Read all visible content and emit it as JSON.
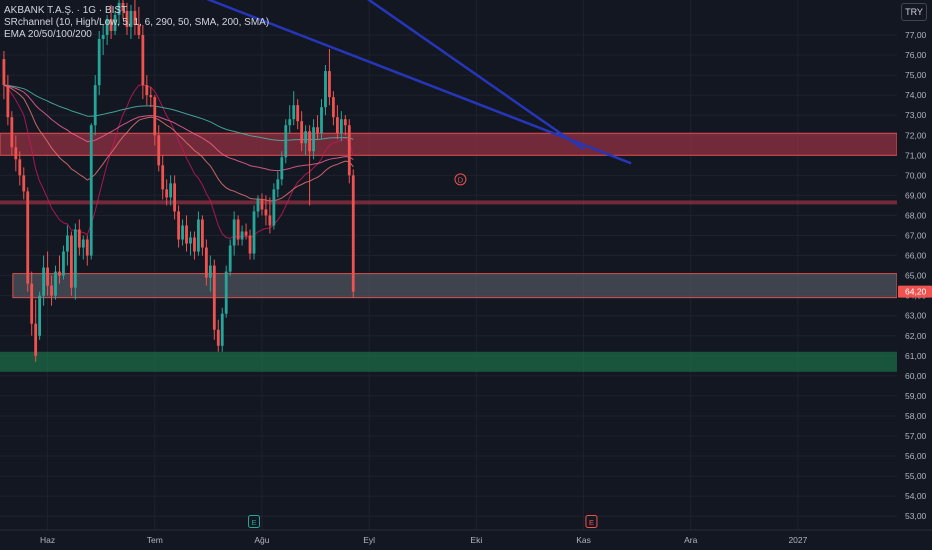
{
  "header": {
    "symbol_line": "AKBANK T.A.Ş. · 1G · BIST",
    "indicator1": "SRchannel (10, High/Low, 5, 1, 6, 290, 50, SMA, 200, SMA)",
    "indicator2": "EMA 20/50/100/200"
  },
  "currency_button": "TRY",
  "chart_data": {
    "type": "candlestick",
    "currency": "TRY",
    "ylim": [
      52.5,
      78.2
    ],
    "y_ticks": [
      "53,00",
      "54,00",
      "55,00",
      "56,00",
      "57,00",
      "58,00",
      "59,00",
      "60,00",
      "61,00",
      "62,00",
      "63,00",
      "64,00",
      "65,00",
      "66,00",
      "67,00",
      "68,00",
      "69,00",
      "70,00",
      "71,00",
      "72,00",
      "73,00",
      "74,00",
      "75,00",
      "76,00",
      "77,00"
    ],
    "y_tick_values": [
      53,
      54,
      55,
      56,
      57,
      58,
      59,
      60,
      61,
      62,
      63,
      64,
      65,
      66,
      67,
      68,
      69,
      70,
      71,
      72,
      73,
      74,
      75,
      76,
      77
    ],
    "x_labels": [
      "Haz",
      "Tem",
      "Ağu",
      "Eyl",
      "Eki",
      "Kas",
      "Ara",
      "2027"
    ],
    "x_label_index": [
      11,
      38,
      65,
      92,
      119,
      146,
      173,
      200
    ],
    "last_price": "64,20",
    "last_price_value": 64.2,
    "sr_zones": [
      {
        "low": 71.0,
        "high": 72.1,
        "color": "#b2354a",
        "start_index": 0,
        "bordered": true
      },
      {
        "low": 68.55,
        "high": 68.75,
        "color": "#b2354a",
        "start_index": 0,
        "bordered": false
      },
      {
        "low": 63.9,
        "high": 65.1,
        "color": "#5d606b",
        "start_index": 2,
        "bordered": true
      },
      {
        "low": 60.2,
        "high": 61.2,
        "color": "#1e7d4e",
        "start_index": 0,
        "bordered": false
      }
    ],
    "trendlines": [
      {
        "from": [
          42,
          79.5
        ],
        "to": [
          158,
          70.6
        ],
        "color": "#2636b8"
      },
      {
        "from": [
          72,
          81.5
        ],
        "to": [
          146,
          71.3
        ],
        "color": "#2636b8"
      }
    ],
    "event_markers": [
      {
        "label": "E",
        "index": 63,
        "color": "#26a69a"
      },
      {
        "label": "E",
        "index": 148,
        "color": "#ef5350"
      }
    ],
    "dividend_marker": {
      "label": "D",
      "index": 115,
      "value": 69.8,
      "color": "#ef5350"
    },
    "ema_colors": [
      "#c2185b",
      "#e57373",
      "#f06292",
      "#4db6ac"
    ],
    "candles": [
      {
        "o": 75.8,
        "h": 76.2,
        "l": 73.8,
        "c": 74.5
      },
      {
        "o": 74.5,
        "h": 75.0,
        "l": 72.5,
        "c": 72.9
      },
      {
        "o": 72.9,
        "h": 73.2,
        "l": 71.0,
        "c": 71.4
      },
      {
        "o": 71.4,
        "h": 72.0,
        "l": 70.2,
        "c": 70.8
      },
      {
        "o": 70.8,
        "h": 71.2,
        "l": 69.5,
        "c": 70.0
      },
      {
        "o": 70.0,
        "h": 70.4,
        "l": 68.8,
        "c": 69.2
      },
      {
        "o": 69.2,
        "h": 69.4,
        "l": 64.2,
        "c": 64.6
      },
      {
        "o": 64.6,
        "h": 65.2,
        "l": 62.0,
        "c": 62.6
      },
      {
        "o": 62.6,
        "h": 63.8,
        "l": 60.7,
        "c": 61.0
      },
      {
        "o": 62.0,
        "h": 64.2,
        "l": 61.8,
        "c": 64.0
      },
      {
        "o": 64.0,
        "h": 66.0,
        "l": 63.5,
        "c": 65.4
      },
      {
        "o": 65.4,
        "h": 66.2,
        "l": 64.0,
        "c": 64.5
      },
      {
        "o": 64.5,
        "h": 65.0,
        "l": 63.5,
        "c": 64.0
      },
      {
        "o": 64.0,
        "h": 65.5,
        "l": 63.8,
        "c": 65.2
      },
      {
        "o": 65.2,
        "h": 66.0,
        "l": 64.6,
        "c": 65.0
      },
      {
        "o": 65.0,
        "h": 66.5,
        "l": 64.8,
        "c": 66.2
      },
      {
        "o": 66.2,
        "h": 67.5,
        "l": 65.5,
        "c": 67.0
      },
      {
        "o": 67.0,
        "h": 67.2,
        "l": 64.0,
        "c": 64.4
      },
      {
        "o": 64.4,
        "h": 67.6,
        "l": 63.8,
        "c": 67.3
      },
      {
        "o": 67.3,
        "h": 67.8,
        "l": 66.0,
        "c": 66.4
      },
      {
        "o": 66.4,
        "h": 67.0,
        "l": 65.8,
        "c": 66.8
      },
      {
        "o": 66.8,
        "h": 67.0,
        "l": 65.5,
        "c": 66.0
      },
      {
        "o": 66.0,
        "h": 72.6,
        "l": 65.8,
        "c": 72.5
      },
      {
        "o": 72.5,
        "h": 75.0,
        "l": 72.0,
        "c": 74.5
      },
      {
        "o": 74.5,
        "h": 77.2,
        "l": 74.0,
        "c": 76.8
      },
      {
        "o": 76.8,
        "h": 77.5,
        "l": 76.0,
        "c": 77.0
      },
      {
        "o": 77.0,
        "h": 78.0,
        "l": 76.5,
        "c": 77.8
      },
      {
        "o": 77.8,
        "h": 78.5,
        "l": 76.8,
        "c": 77.2
      },
      {
        "o": 77.2,
        "h": 78.2,
        "l": 77.0,
        "c": 78.0
      },
      {
        "o": 78.0,
        "h": 79.0,
        "l": 77.5,
        "c": 78.6
      },
      {
        "o": 78.6,
        "h": 79.2,
        "l": 77.8,
        "c": 78.2
      },
      {
        "o": 78.2,
        "h": 78.6,
        "l": 77.0,
        "c": 77.4
      },
      {
        "o": 77.4,
        "h": 78.5,
        "l": 76.8,
        "c": 78.2
      },
      {
        "o": 78.2,
        "h": 78.8,
        "l": 77.0,
        "c": 77.5
      },
      {
        "o": 77.5,
        "h": 78.4,
        "l": 76.8,
        "c": 77.0
      },
      {
        "o": 77.0,
        "h": 77.5,
        "l": 73.8,
        "c": 74.5
      },
      {
        "o": 74.5,
        "h": 75.0,
        "l": 73.5,
        "c": 74.0
      },
      {
        "o": 74.0,
        "h": 74.4,
        "l": 73.4,
        "c": 73.9
      },
      {
        "o": 73.9,
        "h": 74.0,
        "l": 71.5,
        "c": 72.0
      },
      {
        "o": 72.0,
        "h": 72.5,
        "l": 70.2,
        "c": 70.5
      },
      {
        "o": 70.5,
        "h": 71.0,
        "l": 68.8,
        "c": 69.3
      },
      {
        "o": 69.3,
        "h": 69.8,
        "l": 68.5,
        "c": 68.9
      },
      {
        "o": 68.9,
        "h": 70.0,
        "l": 68.5,
        "c": 69.6
      },
      {
        "o": 69.6,
        "h": 70.0,
        "l": 67.8,
        "c": 68.2
      },
      {
        "o": 68.2,
        "h": 68.5,
        "l": 66.4,
        "c": 66.8
      },
      {
        "o": 66.8,
        "h": 67.8,
        "l": 66.5,
        "c": 67.5
      },
      {
        "o": 67.5,
        "h": 68.0,
        "l": 66.2,
        "c": 66.6
      },
      {
        "o": 66.6,
        "h": 67.2,
        "l": 66.0,
        "c": 66.9
      },
      {
        "o": 66.9,
        "h": 67.2,
        "l": 65.8,
        "c": 66.2
      },
      {
        "o": 66.2,
        "h": 68.2,
        "l": 66.0,
        "c": 67.8
      },
      {
        "o": 67.8,
        "h": 68.0,
        "l": 66.0,
        "c": 66.4
      },
      {
        "o": 66.4,
        "h": 66.8,
        "l": 64.5,
        "c": 64.9
      },
      {
        "o": 64.9,
        "h": 66.0,
        "l": 64.2,
        "c": 65.5
      },
      {
        "o": 65.5,
        "h": 65.8,
        "l": 61.8,
        "c": 62.3
      },
      {
        "o": 62.3,
        "h": 62.8,
        "l": 61.2,
        "c": 61.5
      },
      {
        "o": 61.5,
        "h": 63.4,
        "l": 61.2,
        "c": 63.1
      },
      {
        "o": 63.1,
        "h": 65.5,
        "l": 62.9,
        "c": 65.2
      },
      {
        "o": 65.2,
        "h": 66.8,
        "l": 65.0,
        "c": 66.5
      },
      {
        "o": 66.5,
        "h": 68.2,
        "l": 66.0,
        "c": 67.8
      },
      {
        "o": 67.8,
        "h": 68.0,
        "l": 66.5,
        "c": 66.8
      },
      {
        "o": 66.8,
        "h": 67.5,
        "l": 66.5,
        "c": 67.2
      },
      {
        "o": 67.2,
        "h": 67.6,
        "l": 66.8,
        "c": 67.0
      },
      {
        "o": 67.0,
        "h": 67.3,
        "l": 65.8,
        "c": 66.1
      },
      {
        "o": 66.1,
        "h": 68.5,
        "l": 65.8,
        "c": 68.2
      },
      {
        "o": 68.2,
        "h": 69.0,
        "l": 67.9,
        "c": 68.8
      },
      {
        "o": 68.8,
        "h": 69.1,
        "l": 68.0,
        "c": 68.3
      },
      {
        "o": 68.3,
        "h": 69.0,
        "l": 67.5,
        "c": 68.0
      },
      {
        "o": 68.0,
        "h": 68.9,
        "l": 67.1,
        "c": 67.5
      },
      {
        "o": 67.5,
        "h": 69.6,
        "l": 67.3,
        "c": 69.3
      },
      {
        "o": 69.3,
        "h": 70.2,
        "l": 68.9,
        "c": 69.8
      },
      {
        "o": 69.8,
        "h": 71.2,
        "l": 69.5,
        "c": 70.9
      },
      {
        "o": 70.9,
        "h": 72.8,
        "l": 70.6,
        "c": 72.5
      },
      {
        "o": 72.5,
        "h": 73.5,
        "l": 72.1,
        "c": 72.8
      },
      {
        "o": 72.8,
        "h": 74.2,
        "l": 72.5,
        "c": 73.5
      },
      {
        "o": 73.5,
        "h": 73.8,
        "l": 72.3,
        "c": 72.7
      },
      {
        "o": 72.7,
        "h": 73.2,
        "l": 71.2,
        "c": 71.6
      },
      {
        "o": 71.6,
        "h": 72.5,
        "l": 71.0,
        "c": 72.2
      },
      {
        "o": 72.2,
        "h": 72.5,
        "l": 68.5,
        "c": 71.2
      },
      {
        "o": 71.2,
        "h": 72.8,
        "l": 70.8,
        "c": 72.4
      },
      {
        "o": 72.4,
        "h": 73.0,
        "l": 71.8,
        "c": 72.1
      },
      {
        "o": 72.1,
        "h": 73.8,
        "l": 71.8,
        "c": 73.4
      },
      {
        "o": 73.4,
        "h": 75.5,
        "l": 73.0,
        "c": 75.2
      },
      {
        "o": 75.2,
        "h": 76.3,
        "l": 73.5,
        "c": 73.9
      },
      {
        "o": 73.9,
        "h": 74.2,
        "l": 72.5,
        "c": 72.9
      },
      {
        "o": 72.9,
        "h": 73.5,
        "l": 71.8,
        "c": 72.1
      },
      {
        "o": 72.1,
        "h": 73.2,
        "l": 71.7,
        "c": 72.8
      },
      {
        "o": 72.8,
        "h": 73.0,
        "l": 72.0,
        "c": 72.5
      },
      {
        "o": 72.5,
        "h": 72.8,
        "l": 69.6,
        "c": 70.0
      },
      {
        "o": 70.0,
        "h": 70.3,
        "l": 63.9,
        "c": 64.2
      }
    ],
    "x": [],
    "series": []
  }
}
